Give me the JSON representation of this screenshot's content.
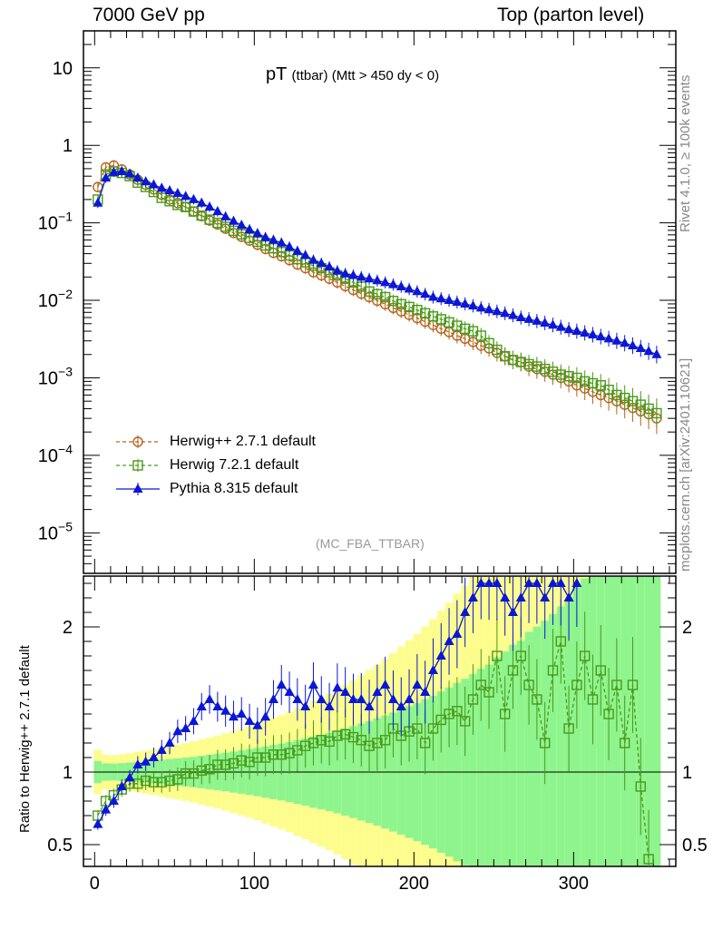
{
  "header": {
    "left": "7000 GeV pp",
    "right": "Top (parton level)"
  },
  "side_text": {
    "rivet": "Rivet 4.1.0, ≥ 100k events",
    "mcplots": "mcplots.cern.ch [arXiv:2401.10621]"
  },
  "chart_data": [
    {
      "type": "line",
      "panel": "main",
      "title": "pT (ttbar) (Mtt > 450 dy < 0)",
      "title_main": "pT",
      "title_sub": "(ttbar) (Mtt > 450 dy < 0)",
      "watermark": "(MC_FBA_TTBAR)",
      "xlabel": "",
      "ylabel": "",
      "yscale": "log",
      "xlim": [
        -7,
        364
      ],
      "ylim": [
        3e-06,
        30
      ],
      "ytick_labels": [
        {
          "value": 10,
          "base": "10",
          "exp": ""
        },
        {
          "value": 1,
          "base": "1",
          "exp": ""
        },
        {
          "value": 0.1,
          "base": "10",
          "exp": "−1"
        },
        {
          "value": 0.01,
          "base": "10",
          "exp": "−2"
        },
        {
          "value": 0.001,
          "base": "10",
          "exp": "−3"
        },
        {
          "value": 0.0001,
          "base": "10",
          "exp": "−4"
        },
        {
          "value": 1e-05,
          "base": "10",
          "exp": "−5"
        }
      ],
      "legend_position": "lower-left",
      "series": [
        {
          "name": "Herwig++ 2.7.1 default",
          "color": "#b8621b",
          "marker": "circle",
          "x": [
            2,
            7,
            12,
            17,
            22,
            27,
            32,
            37,
            42,
            47,
            52,
            57,
            62,
            67,
            72,
            77,
            82,
            87,
            92,
            97,
            102,
            107,
            112,
            117,
            122,
            127,
            132,
            137,
            142,
            147,
            152,
            157,
            162,
            167,
            172,
            177,
            182,
            187,
            192,
            197,
            202,
            207,
            212,
            217,
            222,
            227,
            232,
            237,
            242,
            247,
            252,
            257,
            262,
            267,
            272,
            277,
            282,
            287,
            292,
            297,
            302,
            307,
            312,
            317,
            322,
            327,
            332,
            337,
            342,
            347,
            352
          ],
          "y": [
            0.29,
            0.52,
            0.55,
            0.49,
            0.42,
            0.36,
            0.31,
            0.27,
            0.23,
            0.2,
            0.18,
            0.16,
            0.14,
            0.122,
            0.107,
            0.095,
            0.084,
            0.074,
            0.066,
            0.059,
            0.052,
            0.046,
            0.041,
            0.037,
            0.033,
            0.029,
            0.026,
            0.023,
            0.021,
            0.019,
            0.017,
            0.0152,
            0.0136,
            0.0122,
            0.011,
            0.0099,
            0.0089,
            0.008,
            0.0072,
            0.0065,
            0.0059,
            0.0053,
            0.0048,
            0.0043,
            0.0039,
            0.0035,
            0.0032,
            0.0029,
            0.0026,
            0.0024,
            0.0021,
            0.0019,
            0.0017,
            0.0016,
            0.0014,
            0.0013,
            0.0012,
            0.0011,
            0.001,
            0.0009,
            0.0008,
            0.00073,
            0.00066,
            0.0006,
            0.00055,
            0.0005,
            0.00045,
            0.00041,
            0.00037,
            0.00034,
            0.0003
          ]
        },
        {
          "name": "Herwig 7.2.1 default",
          "color": "#4a9a1a",
          "marker": "square",
          "x": [
            2,
            7,
            12,
            17,
            22,
            27,
            32,
            37,
            42,
            47,
            52,
            57,
            62,
            67,
            72,
            77,
            82,
            87,
            92,
            97,
            102,
            107,
            112,
            117,
            122,
            127,
            132,
            137,
            142,
            147,
            152,
            157,
            162,
            167,
            172,
            177,
            182,
            187,
            192,
            197,
            202,
            207,
            212,
            217,
            222,
            227,
            232,
            237,
            242,
            247,
            252,
            257,
            262,
            267,
            272,
            277,
            282,
            287,
            292,
            297,
            302,
            307,
            312,
            317,
            322,
            327,
            332,
            337,
            342,
            347,
            352
          ],
          "y": [
            0.2,
            0.42,
            0.46,
            0.44,
            0.4,
            0.33,
            0.29,
            0.25,
            0.21,
            0.19,
            0.17,
            0.16,
            0.14,
            0.124,
            0.11,
            0.1,
            0.089,
            0.079,
            0.071,
            0.064,
            0.057,
            0.051,
            0.047,
            0.042,
            0.038,
            0.034,
            0.031,
            0.028,
            0.026,
            0.023,
            0.021,
            0.019,
            0.017,
            0.015,
            0.013,
            0.012,
            0.011,
            0.0098,
            0.0089,
            0.0082,
            0.0075,
            0.0068,
            0.0062,
            0.0057,
            0.0052,
            0.0047,
            0.0043,
            0.004,
            0.0035,
            0.0028,
            0.0023,
            0.0019,
            0.0017,
            0.0016,
            0.0015,
            0.0014,
            0.0013,
            0.0012,
            0.0011,
            0.00105,
            0.001,
            0.0009,
            0.00085,
            0.0008,
            0.0007,
            0.0006,
            0.00055,
            0.0005,
            0.00045,
            0.0004,
            0.00035
          ]
        },
        {
          "name": "Pythia 8.315 default",
          "color": "#0a17d6",
          "marker": "triangle",
          "x": [
            2,
            7,
            12,
            17,
            22,
            27,
            32,
            37,
            42,
            47,
            52,
            57,
            62,
            67,
            72,
            77,
            82,
            87,
            92,
            97,
            102,
            107,
            112,
            117,
            122,
            127,
            132,
            137,
            142,
            147,
            152,
            157,
            162,
            167,
            172,
            177,
            182,
            187,
            192,
            197,
            202,
            207,
            212,
            217,
            222,
            227,
            232,
            237,
            242,
            247,
            252,
            257,
            262,
            267,
            272,
            277,
            282,
            287,
            292,
            297,
            302,
            307,
            312,
            317,
            322,
            327,
            332,
            337,
            342,
            347,
            352
          ],
          "y": [
            0.18,
            0.38,
            0.45,
            0.46,
            0.43,
            0.38,
            0.34,
            0.31,
            0.28,
            0.26,
            0.24,
            0.22,
            0.2,
            0.18,
            0.16,
            0.14,
            0.12,
            0.105,
            0.093,
            0.082,
            0.073,
            0.065,
            0.06,
            0.055,
            0.049,
            0.043,
            0.038,
            0.033,
            0.03,
            0.027,
            0.024,
            0.022,
            0.021,
            0.02,
            0.019,
            0.018,
            0.017,
            0.016,
            0.015,
            0.014,
            0.013,
            0.012,
            0.011,
            0.0105,
            0.01,
            0.0095,
            0.009,
            0.0085,
            0.008,
            0.0076,
            0.0072,
            0.0068,
            0.0064,
            0.006,
            0.0057,
            0.0054,
            0.0051,
            0.0048,
            0.0045,
            0.0042,
            0.004,
            0.0038,
            0.0036,
            0.0034,
            0.0032,
            0.003,
            0.0028,
            0.0026,
            0.0024,
            0.0022,
            0.002
          ]
        }
      ]
    },
    {
      "type": "line",
      "panel": "ratio",
      "ylabel": "Ratio to Herwig++ 2.7.1 default",
      "xlabel": "",
      "xlim": [
        -7,
        364
      ],
      "ylim": [
        0.35,
        2.35
      ],
      "xticks": [
        0,
        100,
        200,
        300
      ],
      "xtick_labels": [
        "0",
        "100",
        "200",
        "300"
      ],
      "yticks": [
        0.5,
        1,
        2
      ],
      "ytick_labels": [
        "0.5",
        "1",
        "2"
      ],
      "band_colors": {
        "inner": "#8ef48e",
        "outer": "#fdfd8d"
      },
      "series": [
        {
          "name": "Herwig 7.2.1 default",
          "color": "#4a9a1a",
          "x": [
            2,
            7,
            12,
            17,
            22,
            27,
            32,
            37,
            42,
            47,
            52,
            57,
            62,
            67,
            72,
            77,
            82,
            87,
            92,
            97,
            102,
            107,
            112,
            117,
            122,
            127,
            132,
            137,
            142,
            147,
            152,
            157,
            162,
            167,
            172,
            177,
            182,
            187,
            192,
            197,
            202,
            207,
            212,
            217,
            222,
            227,
            232,
            237,
            242,
            247,
            252,
            257,
            262,
            267,
            272,
            277,
            282,
            287,
            292,
            297,
            302,
            307,
            312,
            317,
            322,
            327,
            332,
            337,
            342,
            347
          ],
          "y": [
            0.7,
            0.8,
            0.84,
            0.88,
            0.92,
            0.92,
            0.94,
            0.93,
            0.93,
            0.94,
            0.95,
            0.99,
            0.99,
            1.01,
            1.02,
            1.05,
            1.05,
            1.06,
            1.08,
            1.07,
            1.1,
            1.1,
            1.12,
            1.12,
            1.13,
            1.15,
            1.18,
            1.2,
            1.22,
            1.21,
            1.25,
            1.26,
            1.24,
            1.22,
            1.18,
            1.2,
            1.22,
            1.3,
            1.25,
            1.28,
            1.3,
            1.2,
            1.3,
            1.36,
            1.4,
            1.42,
            1.35,
            1.5,
            1.6,
            1.55,
            1.8,
            1.4,
            1.7,
            1.8,
            1.6,
            1.5,
            1.2,
            1.7,
            1.9,
            1.3,
            1.6,
            1.8,
            1.5,
            1.7,
            1.4,
            1.6,
            1.2,
            1.6,
            0.9,
            0.4
          ]
        },
        {
          "name": "Pythia 8.315 default",
          "color": "#0a17d6",
          "x": [
            2,
            7,
            12,
            17,
            22,
            27,
            32,
            37,
            42,
            47,
            52,
            57,
            62,
            67,
            72,
            77,
            82,
            87,
            92,
            97,
            102,
            107,
            112,
            117,
            122,
            127,
            132,
            137,
            142,
            147,
            152,
            157,
            162,
            167,
            172,
            177,
            182,
            187,
            192,
            197,
            202,
            207,
            212,
            217,
            222,
            227,
            232,
            237,
            242,
            247,
            252,
            257,
            262,
            267,
            272,
            277,
            282,
            287,
            292,
            297,
            302
          ],
          "y": [
            0.64,
            0.74,
            0.8,
            0.9,
            0.96,
            1.05,
            1.07,
            1.1,
            1.15,
            1.2,
            1.28,
            1.3,
            1.35,
            1.45,
            1.5,
            1.45,
            1.42,
            1.38,
            1.4,
            1.35,
            1.32,
            1.38,
            1.5,
            1.6,
            1.55,
            1.5,
            1.45,
            1.6,
            1.5,
            1.45,
            1.58,
            1.55,
            1.5,
            1.5,
            1.45,
            1.55,
            1.6,
            1.5,
            1.45,
            1.5,
            1.6,
            1.55,
            1.7,
            1.8,
            1.9,
            1.95,
            2.1,
            2.2,
            2.3,
            2.3,
            2.3,
            2.2,
            2.1,
            2.2,
            2.3,
            2.3,
            2.2,
            2.3,
            2.3,
            2.2,
            2.3
          ]
        }
      ]
    }
  ]
}
